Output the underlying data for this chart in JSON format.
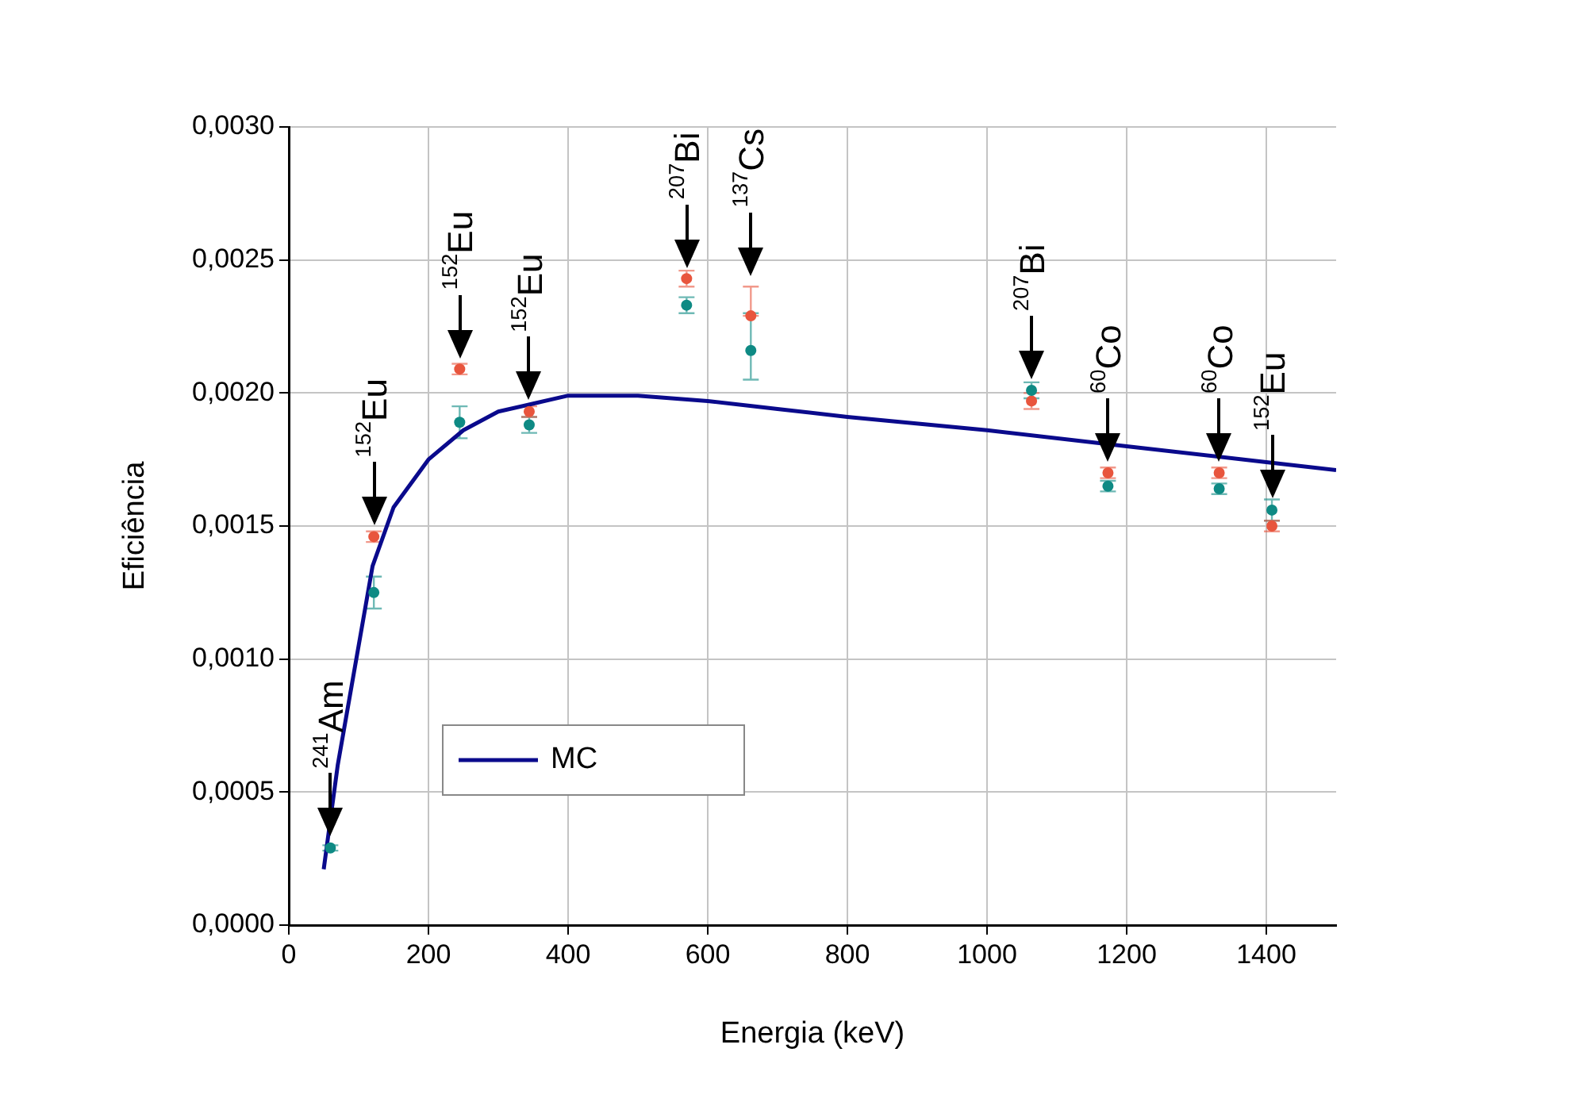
{
  "chart_data": {
    "type": "scatter",
    "xlabel": "Energia (keV)",
    "ylabel": "Eficiência",
    "xlim": [
      0,
      1500
    ],
    "xticks": [
      0,
      200,
      400,
      600,
      800,
      1000,
      1200,
      1400
    ],
    "ylim": [
      0,
      0.003
    ],
    "yticks": [
      {
        "value": 0,
        "label": "0,0000"
      },
      {
        "value": 0.0005,
        "label": "0,0005"
      },
      {
        "value": 0.001,
        "label": "0,0010"
      },
      {
        "value": 0.0015,
        "label": "0,0015"
      },
      {
        "value": 0.002,
        "label": "0,0020"
      },
      {
        "value": 0.0025,
        "label": "0,0025"
      },
      {
        "value": 0.003,
        "label": "0,0030"
      }
    ],
    "grid": true,
    "legend": "bottom left",
    "marker": "circle",
    "line_style": "solid",
    "series": [
      {
        "color": "#0e8a84",
        "x": [
          59.5,
          121.8,
          244.7,
          344.3,
          569.7,
          661.7,
          1063.7,
          1173.2,
          1332.5,
          1408
        ],
        "values": [
          0.00029,
          0.00125,
          0.00189,
          0.00188,
          0.00233,
          0.00216,
          0.00201,
          0.00165,
          0.00164,
          0.00156
        ],
        "errors": [
          1e-05,
          6e-05,
          6e-05,
          3e-05,
          3e-05,
          [
            0.00205,
            0.0023
          ],
          3e-05,
          2e-05,
          2e-05,
          4e-05
        ]
      },
      {
        "color": "#e8553d",
        "x": [
          121.8,
          244.7,
          344.3,
          569.7,
          661.7,
          1063.7,
          1173.2,
          1332.5,
          1408
        ],
        "values": [
          0.00146,
          0.00209,
          0.00193,
          0.00243,
          0.00229,
          0.00197,
          0.0017,
          0.0017,
          0.0015
        ],
        "errors": [
          2e-05,
          2e-05,
          2e-05,
          3e-05,
          [
            0.00229,
            0.0024
          ],
          3e-05,
          2e-05,
          2e-05,
          2e-05
        ]
      },
      {
        "type": "line",
        "name": "MC",
        "color": "#0a0a8c",
        "marker": "none",
        "x": [
          50,
          70,
          90,
          120,
          150,
          200,
          250,
          300,
          350,
          400,
          500,
          600,
          700,
          800,
          1000,
          1200,
          1400,
          1500
        ],
        "values": [
          0.00021,
          0.0006,
          0.0009,
          0.00135,
          0.00157,
          0.00175,
          0.00186,
          0.00193,
          0.00196,
          0.00199,
          0.00199,
          0.00197,
          0.00194,
          0.00191,
          0.00186,
          0.0018,
          0.00174,
          0.00171
        ]
      }
    ],
    "annotations": [
      {
        "text": "$^{241}$Am",
        "x": 59.5,
        "y": 0.00029
      },
      {
        "text": "$^{152}$Eu",
        "x": 121.8,
        "y": 0.00146
      },
      {
        "text": "$^{152}$Eu",
        "x": 244.7,
        "y": 0.00209
      },
      {
        "text": "$^{152}$Eu",
        "x": 344.3,
        "y": 0.00193
      },
      {
        "text": "$^{207}$Bi",
        "x": 569.7,
        "y": 0.00243
      },
      {
        "text": "$^{137}$Cs",
        "x": 661.7,
        "y": 0.0024
      },
      {
        "text": "$^{207}$Bi",
        "x": 1063.7,
        "y": 0.00201
      },
      {
        "text": "$^{60}$Co",
        "x": 1173.2,
        "y": 0.0017
      },
      {
        "text": "$^{60}$Co",
        "x": 1332.5,
        "y": 0.0017
      },
      {
        "text": "$^{152}$Eu",
        "x": 1408,
        "y": 0.00156
      }
    ]
  }
}
